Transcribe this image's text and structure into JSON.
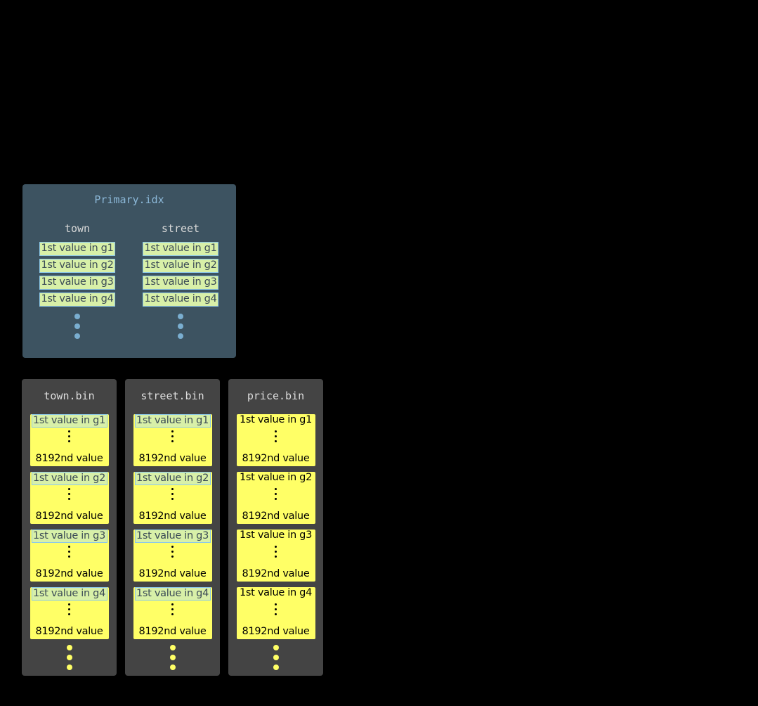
{
  "primary_index": {
    "title": "Primary.idx",
    "columns": [
      {
        "name": "town",
        "entries": [
          "1st value in g1",
          "1st value in g2",
          "1st value in g3",
          "1st value in g4"
        ]
      },
      {
        "name": "street",
        "entries": [
          "1st value in g1",
          "1st value in g2",
          "1st value in g3",
          "1st value in g4"
        ]
      }
    ]
  },
  "bin_files": [
    {
      "name": "town.bin",
      "highlighted": true,
      "granules": [
        {
          "first": "1st value in g1",
          "last": "8192nd value"
        },
        {
          "first": "1st value in g2",
          "last": "8192nd value"
        },
        {
          "first": "1st value in g3",
          "last": "8192nd value"
        },
        {
          "first": "1st value in g4",
          "last": "8192nd value"
        }
      ]
    },
    {
      "name": "street.bin",
      "highlighted": true,
      "granules": [
        {
          "first": "1st value in g1",
          "last": "8192nd value"
        },
        {
          "first": "1st value in g2",
          "last": "8192nd value"
        },
        {
          "first": "1st value in g3",
          "last": "8192nd value"
        },
        {
          "first": "1st value in g4",
          "last": "8192nd value"
        }
      ]
    },
    {
      "name": "price.bin",
      "highlighted": false,
      "granules": [
        {
          "first": "1st value in g1",
          "last": "8192nd value"
        },
        {
          "first": "1st value in g2",
          "last": "8192nd value"
        },
        {
          "first": "1st value in g3",
          "last": "8192nd value"
        },
        {
          "first": "1st value in g4",
          "last": "8192nd value"
        }
      ]
    }
  ],
  "colors": {
    "index_bg": "#3d5361",
    "bin_bg": "#444444",
    "granule": "#ffff66",
    "index_entry": "#d8f0a8",
    "index_dot": "#7aaed0",
    "bin_dot": "#ffff66"
  }
}
